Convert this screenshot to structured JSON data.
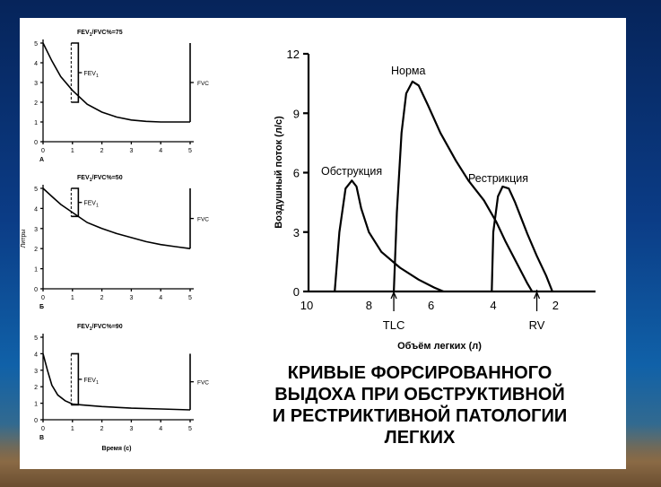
{
  "slide": {
    "title_lines": [
      "КРИВЫЕ ФОРСИРОВАННОГО",
      "ВЫДОХА ПРИ ОБСТРУКТИВНОЙ",
      "И РЕСТРИКТИВНОЙ ПАТОЛОГИИ",
      "ЛЕГКИХ"
    ]
  },
  "chart_data": [
    {
      "type": "line",
      "panel": "A",
      "title": "FEV1/FVC%=75",
      "fev_label": "FEV1",
      "fvc_label": "FVC",
      "ylabel": "",
      "xlabel": "",
      "xlim": [
        0,
        5
      ],
      "ylim": [
        0,
        5
      ],
      "x_ticks": [
        0,
        1,
        2,
        3,
        4,
        5
      ],
      "y_ticks": [
        0,
        1,
        2,
        3,
        4,
        5
      ],
      "fev1_time": 1.2,
      "fev1_bracket": [
        2.0,
        5.0
      ],
      "fvc_bracket": [
        1.0,
        5.0
      ],
      "series": [
        {
          "x": [
            0,
            0.3,
            0.6,
            1.0,
            1.5,
            2.0,
            2.5,
            3.0,
            3.5,
            4.0,
            4.5,
            5.0
          ],
          "y": [
            5.0,
            4.1,
            3.3,
            2.6,
            1.9,
            1.5,
            1.25,
            1.1,
            1.03,
            1.0,
            1.0,
            1.0
          ]
        }
      ]
    },
    {
      "type": "line",
      "panel": "Б",
      "title": "FEV1/FVC%=50",
      "fev_label": "FEV1",
      "fvc_label": "FVC",
      "ylabel": "Литры",
      "xlabel": "",
      "xlim": [
        0,
        5
      ],
      "ylim": [
        0,
        5
      ],
      "x_ticks": [
        0,
        1,
        2,
        3,
        4,
        5
      ],
      "y_ticks": [
        0,
        1,
        2,
        3,
        4,
        5
      ],
      "fev1_time": 1.2,
      "fev1_bracket": [
        3.6,
        5.0
      ],
      "fvc_bracket": [
        2.0,
        5.0
      ],
      "series": [
        {
          "x": [
            0,
            0.3,
            0.6,
            1.0,
            1.5,
            2.0,
            2.5,
            3.0,
            3.5,
            4.0,
            4.5,
            5.0
          ],
          "y": [
            5.0,
            4.6,
            4.2,
            3.8,
            3.3,
            3.0,
            2.75,
            2.55,
            2.35,
            2.2,
            2.1,
            2.0
          ]
        }
      ]
    },
    {
      "type": "line",
      "panel": "В",
      "title": "FEV1/FVC%=90",
      "fev_label": "FEV1",
      "fvc_label": "FVC",
      "ylabel": "",
      "xlabel": "Время (с)",
      "xlim": [
        0,
        5
      ],
      "ylim": [
        0,
        5
      ],
      "x_ticks": [
        0,
        1,
        2,
        3,
        4,
        5
      ],
      "y_ticks": [
        0,
        1,
        2,
        3,
        4,
        5
      ],
      "fev1_time": 1.2,
      "fev1_bracket": [
        0.9,
        4.0
      ],
      "fvc_bracket": [
        0.6,
        4.0
      ],
      "series": [
        {
          "x": [
            0,
            0.15,
            0.3,
            0.5,
            0.75,
            1.0,
            1.3,
            2.0,
            3.0,
            4.0,
            5.0
          ],
          "y": [
            4.0,
            3.0,
            2.1,
            1.5,
            1.15,
            0.95,
            0.9,
            0.8,
            0.7,
            0.65,
            0.6
          ]
        }
      ]
    },
    {
      "type": "line",
      "title": "",
      "xlabel": "Объём легких (л)",
      "ylabel": "Воздушный поток (л/с)",
      "xlim": [
        10,
        1
      ],
      "ylim": [
        0,
        12
      ],
      "x_ticks": [
        10,
        8,
        6,
        4,
        2
      ],
      "y_ticks": [
        0,
        3,
        6,
        9,
        12
      ],
      "markers": [
        {
          "label": "TLC",
          "x": 7.2
        },
        {
          "label": "RV",
          "x": 2.6
        }
      ],
      "series": [
        {
          "name": "Обструкция",
          "x": [
            9.1,
            8.95,
            8.75,
            8.55,
            8.4,
            8.25,
            8.0,
            7.6,
            7.0,
            6.4,
            5.9,
            5.6
          ],
          "y": [
            0,
            3.0,
            5.2,
            5.6,
            5.3,
            4.2,
            3.0,
            2.0,
            1.2,
            0.6,
            0.2,
            0
          ]
        },
        {
          "name": "Норма",
          "x": [
            7.2,
            7.1,
            6.95,
            6.8,
            6.6,
            6.4,
            6.1,
            5.7,
            5.2,
            4.8,
            4.3,
            3.9,
            3.6,
            3.2,
            2.9,
            2.75
          ],
          "y": [
            0,
            4.0,
            8.0,
            10.0,
            10.6,
            10.4,
            9.4,
            8.0,
            6.6,
            5.6,
            4.6,
            3.5,
            2.5,
            1.3,
            0.4,
            0
          ]
        },
        {
          "name": "Рестрикция",
          "x": [
            4.05,
            4.0,
            3.85,
            3.7,
            3.5,
            3.3,
            3.1,
            2.9,
            2.6,
            2.3,
            2.1
          ],
          "y": [
            0,
            3.0,
            4.8,
            5.3,
            5.2,
            4.5,
            3.7,
            2.9,
            1.8,
            0.8,
            0
          ]
        }
      ]
    }
  ]
}
